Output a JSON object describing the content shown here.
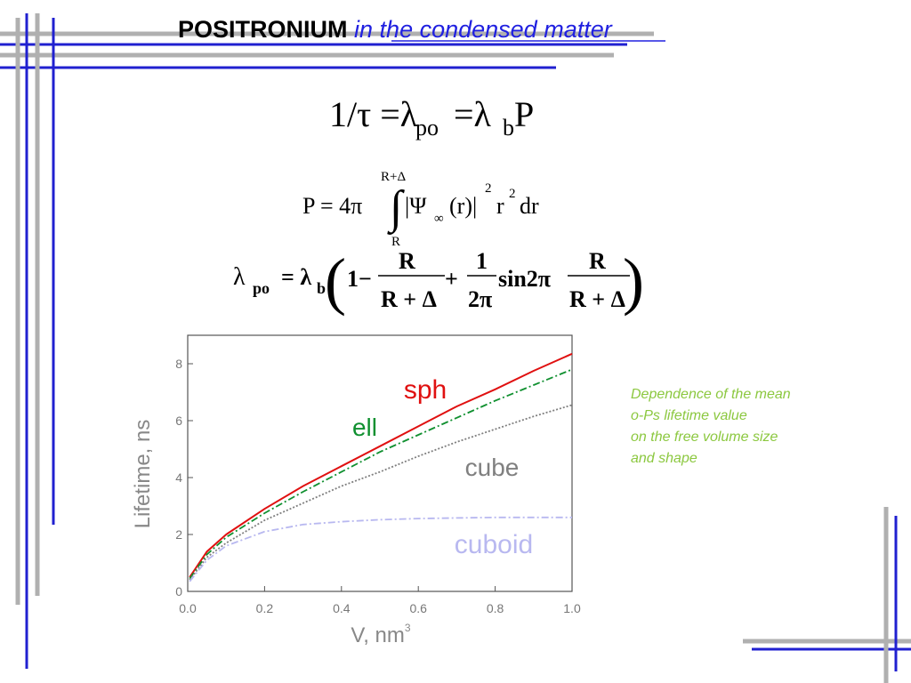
{
  "title": {
    "bold": "POSITRONIUM",
    "italic": "in the condensed matter"
  },
  "formulas": [
    [
      "1/τ =λ",
      "po",
      "=λ",
      "b",
      "P"
    ],
    [
      "P = 4π",
      "∫",
      "R+Δ",
      "R",
      "|Ψ",
      "∞",
      "(r)|",
      "2",
      "r",
      "2",
      "dr"
    ],
    [
      "λ",
      "po",
      "= λ",
      "b",
      "(",
      "1−",
      "R",
      "R + Δ",
      "+",
      "1",
      "2π",
      "sin2π",
      "R",
      "R + Δ",
      ")"
    ]
  ],
  "caption": [
    "Dependence of the mean",
    "o-Ps lifetime value",
    "on the free volume size",
    "and shape"
  ],
  "chart_data": {
    "type": "line",
    "xlabel": "V, nm",
    "xlabel_superscript": "3",
    "ylabel": "Lifetime, ns",
    "x": [
      0.005,
      0.05,
      0.1,
      0.2,
      0.3,
      0.4,
      0.5,
      0.6,
      0.7,
      0.8,
      0.9,
      1.0
    ],
    "series": [
      {
        "name": "sph",
        "color": "#e01010",
        "style": "solid",
        "values": [
          0.5,
          1.4,
          2.0,
          2.9,
          3.7,
          4.4,
          5.1,
          5.8,
          6.5,
          7.1,
          7.75,
          8.35
        ]
      },
      {
        "name": "ell",
        "color": "#109030",
        "style": "dashdot",
        "values": [
          0.45,
          1.3,
          1.9,
          2.75,
          3.5,
          4.2,
          4.9,
          5.5,
          6.1,
          6.7,
          7.25,
          7.8
        ]
      },
      {
        "name": "cube",
        "color": "#808080",
        "style": "dotted",
        "values": [
          0.4,
          1.2,
          1.7,
          2.5,
          3.1,
          3.7,
          4.2,
          4.75,
          5.25,
          5.7,
          6.15,
          6.55
        ]
      },
      {
        "name": "cuboid",
        "color": "#b8b8f0",
        "style": "dashdot",
        "values": [
          0.35,
          1.1,
          1.6,
          2.1,
          2.35,
          2.45,
          2.52,
          2.56,
          2.58,
          2.6,
          2.6,
          2.6
        ]
      }
    ],
    "xlim": [
      0,
      1
    ],
    "ylim": [
      0,
      9
    ],
    "xticks": [
      {
        "value": 0,
        "label": "0.0"
      },
      0.2,
      0.4,
      0.6,
      0.8,
      {
        "value": 1,
        "label": "1.0"
      }
    ],
    "yticks": [
      0,
      2,
      4,
      6,
      8
    ]
  }
}
